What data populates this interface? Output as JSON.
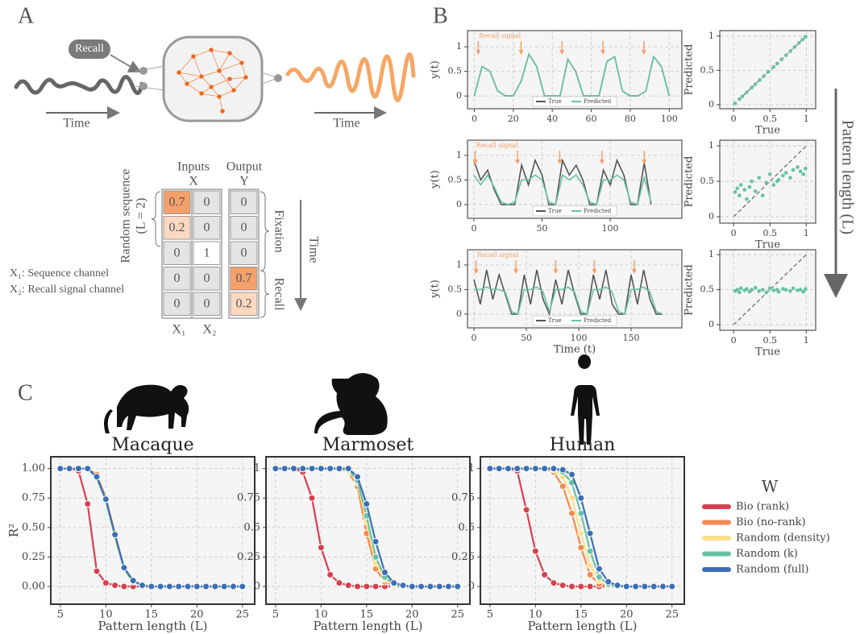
{
  "panels": [
    "A",
    "B",
    "C"
  ],
  "side_label": "Pattern length (L)",
  "diagram": {
    "recall_tag": "Recall",
    "time_left": "Time",
    "time_right": "Time",
    "inputs": "Inputs",
    "x": "X",
    "output": "Output",
    "y": "Y",
    "sequence_label": "Random sequence",
    "sequence_length": "(L = 2)",
    "fixation": "Fixation",
    "recall": "Recall",
    "time_down": "Time",
    "legend": [
      "X₁: Sequence channel",
      "X₂: Recall signal channel"
    ],
    "columns": [
      "X₁",
      "X₂"
    ],
    "table": {
      "rows": [
        [
          0.7,
          0,
          0
        ],
        [
          0.2,
          0,
          0
        ],
        [
          0,
          1,
          0
        ],
        [
          0,
          0,
          0.7
        ],
        [
          0,
          0,
          0.2
        ]
      ]
    }
  },
  "chart_data": [
    {
      "type": "line",
      "y_label": "y(t)",
      "xlim": [
        -3.5,
        106.5
      ],
      "ylim": [
        -0.26,
        1.33
      ],
      "xticks": [
        0,
        20,
        40,
        60,
        80,
        100
      ],
      "yticks": [
        0,
        0.5,
        1
      ],
      "grid": true,
      "legend": "lower center",
      "annotation": "Recall signal",
      "annotation_color": "#f4a06b",
      "recall_signal_x": [
        2,
        24,
        45,
        66,
        87
      ],
      "x": [
        0,
        4,
        8,
        12,
        16,
        20,
        24,
        28,
        32,
        36,
        40,
        44,
        48,
        52,
        56,
        60,
        64,
        68,
        72,
        76,
        80,
        84,
        88,
        92,
        96,
        100
      ],
      "series": [
        {
          "name": "True",
          "color": "#555555",
          "values": [
            0,
            0.6,
            0.5,
            0.1,
            0,
            0,
            0.3,
            0.85,
            0.6,
            0,
            0,
            0,
            0.75,
            0.5,
            0,
            0,
            0,
            0.7,
            0.8,
            0.1,
            0,
            0,
            0.1,
            0.8,
            0.6,
            0
          ]
        },
        {
          "name": "Predicted",
          "color": "#66c2a5",
          "values": [
            0,
            0.6,
            0.5,
            0.1,
            0,
            0,
            0.3,
            0.85,
            0.6,
            0,
            0,
            0,
            0.75,
            0.5,
            0,
            0,
            0,
            0.7,
            0.8,
            0.1,
            0,
            0,
            0.1,
            0.8,
            0.6,
            0
          ]
        }
      ]
    },
    {
      "type": "scatter",
      "x_label": "True",
      "y_label": "Predicted",
      "xlim": [
        -0.19,
        1.13
      ],
      "ylim": [
        -0.06,
        1.08
      ],
      "xticks": [
        0,
        0.5,
        1
      ],
      "yticks": [
        0,
        0.5,
        1
      ],
      "grid": true,
      "reference_line": true,
      "color": "#66c2a5",
      "x": [
        0.02,
        0.08,
        0.12,
        0.18,
        0.25,
        0.3,
        0.36,
        0.42,
        0.48,
        0.55,
        0.6,
        0.66,
        0.72,
        0.78,
        0.84,
        0.9,
        0.95,
        0.99
      ],
      "values": [
        0.02,
        0.08,
        0.12,
        0.18,
        0.25,
        0.3,
        0.36,
        0.42,
        0.48,
        0.55,
        0.6,
        0.66,
        0.72,
        0.78,
        0.84,
        0.9,
        0.95,
        0.99
      ]
    },
    {
      "type": "line",
      "y_label": "y(t)",
      "xlim": [
        -4.7,
        152.6
      ],
      "ylim": [
        -0.28,
        1.31
      ],
      "xticks": [
        0,
        50,
        100
      ],
      "yticks": [
        0,
        0.5,
        1
      ],
      "grid": true,
      "legend": "lower center",
      "annotation": "Recall signal",
      "annotation_color": "#f4a06b",
      "recall_signal_x": [
        1,
        32,
        63,
        94,
        125
      ],
      "x": [
        0,
        5,
        10,
        15,
        20,
        25,
        30,
        35,
        40,
        45,
        50,
        55,
        60,
        65,
        70,
        75,
        80,
        85,
        90,
        95,
        100,
        105,
        110,
        115,
        120,
        125,
        130
      ],
      "series": [
        {
          "name": "True",
          "color": "#555555",
          "values": [
            0.9,
            0.5,
            0.7,
            0.3,
            0,
            0,
            0,
            0.8,
            0.4,
            0.9,
            0.6,
            0,
            0,
            0.9,
            0.6,
            0.8,
            0.5,
            0,
            0,
            0.7,
            0.4,
            0.9,
            0.6,
            0,
            0,
            0.85,
            0
          ]
        },
        {
          "name": "Predicted",
          "color": "#66c2a5",
          "values": [
            0.6,
            0.4,
            0.6,
            0.35,
            0.05,
            0,
            0.05,
            0.5,
            0.5,
            0.6,
            0.5,
            0.05,
            0,
            0.6,
            0.5,
            0.6,
            0.4,
            0.05,
            0,
            0.5,
            0.5,
            0.6,
            0.5,
            0.05,
            0,
            0.55,
            0.05
          ]
        }
      ]
    },
    {
      "type": "scatter",
      "x_label": "True",
      "y_label": "Predicted",
      "xlim": [
        -0.19,
        1.13
      ],
      "ylim": [
        -0.09,
        1.08
      ],
      "xticks": [
        0,
        0.5,
        1
      ],
      "yticks": [
        0,
        0.5,
        1
      ],
      "grid": true,
      "reference_line": true,
      "color": "#66c2a5",
      "x": [
        0.02,
        0.05,
        0.08,
        0.1,
        0.15,
        0.18,
        0.22,
        0.25,
        0.3,
        0.35,
        0.4,
        0.45,
        0.5,
        0.55,
        0.6,
        0.62,
        0.68,
        0.72,
        0.78,
        0.82,
        0.88,
        0.92,
        0.96,
        0.99
      ],
      "values": [
        0.35,
        0.4,
        0.3,
        0.45,
        0.38,
        0.25,
        0.42,
        0.5,
        0.36,
        0.55,
        0.3,
        0.48,
        0.6,
        0.45,
        0.5,
        0.52,
        0.58,
        0.62,
        0.55,
        0.66,
        0.7,
        0.64,
        0.6,
        0.68
      ]
    },
    {
      "type": "line",
      "x_label": "Time (t)",
      "y_label": "y(t)",
      "xlim": [
        -6.2,
        198.5
      ],
      "ylim": [
        -0.28,
        1.31
      ],
      "xticks": [
        0,
        50,
        100,
        150
      ],
      "yticks": [
        0,
        0.5,
        1
      ],
      "grid": true,
      "legend": "lower center",
      "annotation": "Recall signal",
      "annotation_color": "#f4a06b",
      "recall_signal_x": [
        2,
        40,
        78,
        115,
        153
      ],
      "x": [
        0,
        6,
        12,
        18,
        24,
        30,
        36,
        42,
        48,
        54,
        60,
        66,
        72,
        78,
        84,
        90,
        96,
        102,
        108,
        114,
        120,
        126,
        132,
        138,
        144,
        150,
        156,
        162,
        168,
        174,
        180
      ],
      "series": [
        {
          "name": "True",
          "color": "#555555",
          "values": [
            0.7,
            0.2,
            0.9,
            0.3,
            0.8,
            0.4,
            0,
            0,
            0.8,
            0.2,
            0.9,
            0.3,
            0,
            0.7,
            0.2,
            0.9,
            0.4,
            0,
            0,
            0.8,
            0.3,
            0.9,
            0.2,
            0,
            0,
            0.8,
            0.2,
            0.9,
            0.3,
            0,
            0
          ]
        },
        {
          "name": "Predicted",
          "color": "#66c2a5",
          "values": [
            0.5,
            0.5,
            0.55,
            0.5,
            0.5,
            0.45,
            0.05,
            0,
            0.5,
            0.5,
            0.55,
            0.45,
            0.05,
            0.5,
            0.5,
            0.55,
            0.45,
            0.05,
            0,
            0.5,
            0.5,
            0.55,
            0.45,
            0.05,
            0,
            0.5,
            0.5,
            0.55,
            0.45,
            0.05,
            0
          ]
        }
      ]
    },
    {
      "type": "scatter",
      "x_label": "True",
      "y_label": "Predicted",
      "xlim": [
        -0.19,
        1.13
      ],
      "ylim": [
        -0.08,
        1.07
      ],
      "xticks": [
        0,
        0.5,
        1
      ],
      "yticks": [
        0,
        0.5,
        1
      ],
      "grid": true,
      "reference_line": true,
      "color": "#66c2a5",
      "x": [
        0.02,
        0.05,
        0.08,
        0.1,
        0.15,
        0.18,
        0.22,
        0.25,
        0.3,
        0.35,
        0.4,
        0.45,
        0.5,
        0.55,
        0.6,
        0.62,
        0.68,
        0.72,
        0.78,
        0.82,
        0.88,
        0.92,
        0.96,
        0.99
      ],
      "values": [
        0.48,
        0.5,
        0.46,
        0.52,
        0.49,
        0.51,
        0.47,
        0.5,
        0.53,
        0.48,
        0.5,
        0.46,
        0.52,
        0.49,
        0.5,
        0.47,
        0.51,
        0.5,
        0.48,
        0.52,
        0.49,
        0.5,
        0.47,
        0.51
      ]
    },
    {
      "type": "line",
      "title": "Macaque",
      "x_label": "Pattern length (L)",
      "y_label": "R²",
      "markers": true,
      "xlim": [
        3.95,
        26.35
      ],
      "ylim": [
        -0.15,
        1.1
      ],
      "xticks": [
        5,
        10,
        15,
        20,
        25
      ],
      "yticks": [
        {
          "value": 0,
          "label": "0.00"
        },
        {
          "value": 0.25,
          "label": "0.25"
        },
        {
          "value": 0.5,
          "label": "0.50"
        },
        {
          "value": 0.75,
          "label": "0.75"
        },
        {
          "value": 1,
          "label": "1.00"
        }
      ],
      "grid": true,
      "x": [
        5,
        6,
        7,
        8,
        9,
        10,
        11,
        12,
        13,
        14,
        15,
        16,
        17,
        18,
        19,
        20,
        21,
        22,
        23,
        24,
        25
      ],
      "series": [
        {
          "name": "Bio (rank)",
          "color": "#d6404e",
          "values": [
            1,
            1,
            0.98,
            0.7,
            0.13,
            0.03,
            0.01,
            0,
            0,
            0,
            0,
            0,
            0,
            0,
            0,
            0,
            0,
            0,
            0,
            0,
            0
          ]
        },
        {
          "name": "Bio (no-rank)",
          "color": "#f5894e",
          "values": [
            1,
            1,
            1,
            1,
            0.95,
            0.75,
            0.45,
            0.15,
            0.04,
            0.01,
            0,
            0,
            0,
            0,
            0,
            0,
            0,
            0,
            0,
            0,
            0
          ]
        },
        {
          "name": "Random (density)",
          "color": "#fee08b",
          "values": [
            1,
            1,
            1,
            1,
            0.93,
            0.73,
            0.42,
            0.14,
            0.04,
            0.01,
            0,
            0,
            0,
            0,
            0,
            0,
            0,
            0,
            0,
            0,
            0
          ]
        },
        {
          "name": "Random (k)",
          "color": "#66c2a5",
          "values": [
            1,
            1,
            1,
            1,
            0.92,
            0.73,
            0.43,
            0.15,
            0.04,
            0.01,
            0,
            0,
            0,
            0,
            0,
            0,
            0,
            0,
            0,
            0,
            0
          ]
        },
        {
          "name": "Random (full)",
          "color": "#3b6fb6",
          "values": [
            1,
            1,
            1,
            1,
            0.93,
            0.74,
            0.44,
            0.16,
            0.05,
            0.01,
            0,
            0,
            0,
            0,
            0,
            0,
            0,
            0,
            0,
            0,
            0
          ]
        }
      ]
    },
    {
      "type": "line",
      "title": "Marmoset",
      "x_label": "Pattern length (L)",
      "markers": true,
      "xlim": [
        3.95,
        26.35
      ],
      "ylim": [
        -0.15,
        1.1
      ],
      "xticks": [
        5,
        10,
        15,
        20,
        25
      ],
      "yticks": [
        0,
        0.25,
        0.5,
        0.75,
        1
      ],
      "grid": true,
      "x": [
        5,
        6,
        7,
        8,
        9,
        10,
        11,
        12,
        13,
        14,
        15,
        16,
        17,
        18,
        19,
        20,
        21,
        22,
        23,
        24,
        25
      ],
      "series": [
        {
          "name": "Bio (rank)",
          "color": "#d6404e",
          "values": [
            1,
            1,
            1,
            0.97,
            0.75,
            0.33,
            0.1,
            0.03,
            0.01,
            0,
            0,
            0,
            0,
            0,
            0,
            0,
            0,
            0,
            0,
            0,
            0
          ]
        },
        {
          "name": "Bio (no-rank)",
          "color": "#f5894e",
          "values": [
            1,
            1,
            1,
            1,
            1,
            1,
            1,
            1,
            0.97,
            0.85,
            0.45,
            0.15,
            0.04,
            0.01,
            0,
            0,
            0,
            0,
            0,
            0,
            0
          ]
        },
        {
          "name": "Random (density)",
          "color": "#fee08b",
          "values": [
            1,
            1,
            1,
            1,
            1,
            1,
            1,
            1,
            0.98,
            0.88,
            0.55,
            0.2,
            0.06,
            0.01,
            0,
            0,
            0,
            0,
            0,
            0,
            0
          ]
        },
        {
          "name": "Random (k)",
          "color": "#66c2a5",
          "values": [
            1,
            1,
            1,
            1,
            1,
            1,
            1,
            1,
            0.99,
            0.9,
            0.6,
            0.25,
            0.08,
            0.02,
            0,
            0,
            0,
            0,
            0,
            0,
            0
          ]
        },
        {
          "name": "Random (full)",
          "color": "#3b6fb6",
          "values": [
            1,
            1,
            1,
            1,
            1,
            1,
            1,
            1,
            1,
            0.93,
            0.7,
            0.38,
            0.12,
            0.03,
            0.01,
            0,
            0,
            0,
            0,
            0,
            0
          ]
        }
      ]
    },
    {
      "type": "line",
      "title": "Human",
      "x_label": "Pattern length (L)",
      "markers": true,
      "xlim": [
        3.95,
        26.35
      ],
      "ylim": [
        -0.15,
        1.1
      ],
      "xticks": [
        5,
        10,
        15,
        20,
        25
      ],
      "yticks": [
        0,
        0.25,
        0.5,
        0.75,
        1
      ],
      "grid": true,
      "legend": "outside right",
      "legend_title": "W",
      "x": [
        5,
        6,
        7,
        8,
        9,
        10,
        11,
        12,
        13,
        14,
        15,
        16,
        17,
        18,
        19,
        20,
        21,
        22,
        23,
        24,
        25
      ],
      "series": [
        {
          "name": "Bio (rank)",
          "color": "#d6404e",
          "values": [
            1,
            1,
            1,
            0.98,
            0.65,
            0.3,
            0.1,
            0.03,
            0.01,
            0,
            0,
            0,
            0,
            0,
            0,
            0,
            0,
            0,
            0,
            0,
            0
          ]
        },
        {
          "name": "Bio (no-rank)",
          "color": "#f5894e",
          "values": [
            1,
            1,
            1,
            1,
            1,
            1,
            1,
            0.97,
            0.85,
            0.62,
            0.33,
            0.1,
            0.02,
            0,
            0,
            0,
            0,
            0,
            0,
            0,
            0
          ]
        },
        {
          "name": "Random (density)",
          "color": "#fee08b",
          "values": [
            1,
            1,
            1,
            1,
            1,
            1,
            1,
            0.99,
            0.93,
            0.75,
            0.45,
            0.18,
            0.05,
            0.01,
            0,
            0,
            0,
            0,
            0,
            0,
            0
          ]
        },
        {
          "name": "Random (k)",
          "color": "#66c2a5",
          "values": [
            1,
            1,
            1,
            1,
            1,
            1,
            1,
            1,
            0.97,
            0.88,
            0.62,
            0.3,
            0.08,
            0.02,
            0,
            0,
            0,
            0,
            0,
            0,
            0
          ]
        },
        {
          "name": "Random (full)",
          "color": "#3b6fb6",
          "values": [
            1,
            1,
            1,
            1,
            1,
            1,
            1,
            1,
            0.99,
            0.95,
            0.75,
            0.45,
            0.15,
            0.04,
            0.01,
            0,
            0,
            0,
            0,
            0,
            0
          ]
        }
      ]
    }
  ]
}
